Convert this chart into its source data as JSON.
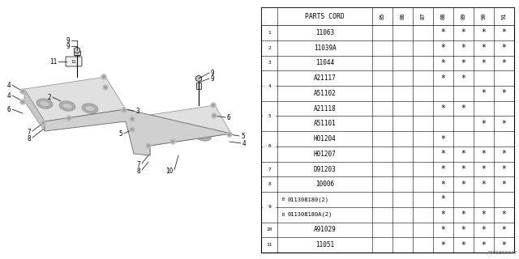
{
  "watermark": "A006B00077",
  "rows": [
    {
      "num": "1",
      "part": "11063",
      "b": false,
      "cols": [
        false,
        false,
        false,
        true,
        true,
        true,
        true
      ]
    },
    {
      "num": "2",
      "part": "11039A",
      "b": false,
      "cols": [
        false,
        false,
        false,
        true,
        true,
        true,
        true
      ]
    },
    {
      "num": "3",
      "part": "11044",
      "b": false,
      "cols": [
        false,
        false,
        false,
        true,
        true,
        true,
        true
      ]
    },
    {
      "num": "4",
      "part": "A21117",
      "b": false,
      "cols": [
        false,
        false,
        false,
        true,
        true,
        false,
        false
      ]
    },
    {
      "num": "4",
      "part": "A51102",
      "b": false,
      "cols": [
        false,
        false,
        false,
        false,
        false,
        true,
        true
      ]
    },
    {
      "num": "5",
      "part": "A21118",
      "b": false,
      "cols": [
        false,
        false,
        false,
        true,
        true,
        false,
        false
      ]
    },
    {
      "num": "5",
      "part": "A51101",
      "b": false,
      "cols": [
        false,
        false,
        false,
        false,
        false,
        true,
        true
      ]
    },
    {
      "num": "6",
      "part": "H01204",
      "b": false,
      "cols": [
        false,
        false,
        false,
        true,
        false,
        false,
        false
      ]
    },
    {
      "num": "6",
      "part": "H01207",
      "b": false,
      "cols": [
        false,
        false,
        false,
        true,
        true,
        true,
        true
      ]
    },
    {
      "num": "7",
      "part": "D91203",
      "b": false,
      "cols": [
        false,
        false,
        false,
        true,
        true,
        true,
        true
      ]
    },
    {
      "num": "8",
      "part": "10006",
      "b": false,
      "cols": [
        false,
        false,
        false,
        true,
        true,
        true,
        true
      ]
    },
    {
      "num": "9",
      "part": "011308180(2)",
      "b": true,
      "cols": [
        false,
        false,
        false,
        true,
        false,
        false,
        false
      ]
    },
    {
      "num": "9",
      "part": "011308180A(2)",
      "b": true,
      "cols": [
        false,
        false,
        false,
        true,
        true,
        true,
        true
      ]
    },
    {
      "num": "10",
      "part": "A91029",
      "b": false,
      "cols": [
        false,
        false,
        false,
        true,
        true,
        true,
        true
      ]
    },
    {
      "num": "11",
      "part": "11051",
      "b": false,
      "cols": [
        false,
        false,
        false,
        true,
        true,
        true,
        true
      ]
    }
  ],
  "years": [
    "85",
    "86",
    "87",
    "88",
    "89",
    "90",
    "91"
  ],
  "bg_color": "#ffffff"
}
